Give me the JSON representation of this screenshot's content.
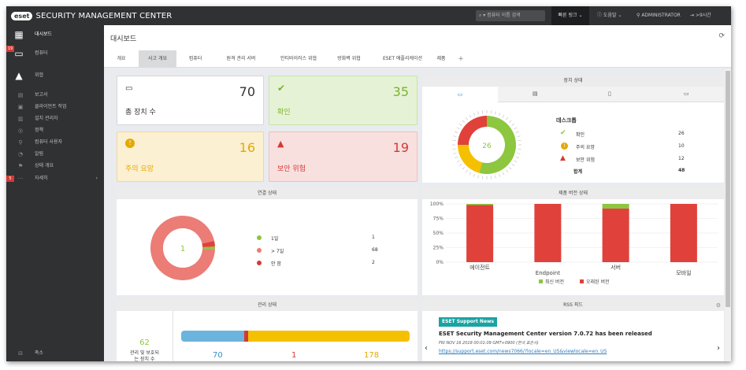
{
  "app": {
    "brand_badge": "eset",
    "brand_title": "SECURITY MANAGEMENT CENTER",
    "search_placeholder": "컴퓨터 이름 검색",
    "quick_links": "빠른 링크",
    "help": "도움말",
    "user": "ADMINISTRATOR",
    "logout": ">9시간"
  },
  "sidebar": {
    "items": [
      {
        "label": "대시보드",
        "icon": "dashboard-icon"
      },
      {
        "label": "컴퓨터",
        "icon": "computer-icon",
        "badge": "19"
      },
      {
        "label": "위협",
        "icon": "threat-icon"
      },
      {
        "label": "보고서",
        "icon": "report-icon"
      },
      {
        "label": "클라이언트 작업",
        "icon": "task-icon"
      },
      {
        "label": "설치 관리자",
        "icon": "installer-icon"
      },
      {
        "label": "정책",
        "icon": "policy-icon"
      },
      {
        "label": "컴퓨터 사용자",
        "icon": "user-icon"
      },
      {
        "label": "알림",
        "icon": "bell-icon"
      },
      {
        "label": "상태 개요",
        "icon": "status-icon"
      },
      {
        "label": "자세히",
        "icon": "more-icon",
        "badge": "5"
      }
    ],
    "collapse": "축소"
  },
  "page": {
    "title": "대시보드",
    "tabs": [
      "개요",
      "사고 개요",
      "컴퓨터",
      "원격 관리 서버",
      "안티바이러스 위협",
      "방화벽 위협",
      "ESET 애플리케이션",
      "제품"
    ]
  },
  "summary": {
    "total": {
      "value": "70",
      "label": "총 장치 수"
    },
    "ok": {
      "value": "35",
      "label": "확인"
    },
    "warning": {
      "value": "16",
      "label": "주의 요망"
    },
    "risk": {
      "value": "19",
      "label": "보안 위험"
    }
  },
  "device_status": {
    "title": "장치 상태",
    "center_value": "26",
    "section": "데스크톱",
    "rows": [
      {
        "label": "확인",
        "value": "26"
      },
      {
        "label": "주의 요망",
        "value": "10"
      },
      {
        "label": "보안 위험",
        "value": "12"
      }
    ],
    "total_label": "합계",
    "total_value": "48"
  },
  "connection_status": {
    "title": "연결 상태",
    "center_value": "1",
    "legend": [
      {
        "label": "1일",
        "value": "1"
      },
      {
        "label": "> 7일",
        "value": "68"
      },
      {
        "label": "안 함",
        "value": "2"
      }
    ]
  },
  "product_version": {
    "title": "제품 버전 상태",
    "legend": [
      "최신 버전",
      "오래된 버전"
    ]
  },
  "management_status": {
    "title": "관리 상태",
    "count": "62",
    "label1": "관리 및 보호되",
    "label2": "는 장치 수",
    "values": [
      "70",
      "1",
      "178"
    ]
  },
  "rss": {
    "title": "RSS 피드",
    "badge": "ESET Support News",
    "headline": "ESET Security Management Center version 7.0.72 has been released",
    "date": "FRI NOV 16 2018 00:01:09 GMT+0900 (한국 표준시)",
    "link": "https://support.eset.com/news7066/?locale=en_US&viewlocale=en_US"
  },
  "colors": {
    "ok": "#8dc63f",
    "warning": "#f5c000",
    "risk": "#e0413a",
    "salmon": "#ec7c76",
    "blue": "#6bb4dd"
  },
  "chart_data": [
    {
      "type": "pie",
      "title": "장치 상태",
      "categories": [
        "확인",
        "주의 요망",
        "보안 위험"
      ],
      "values": [
        26,
        10,
        12
      ]
    },
    {
      "type": "pie",
      "title": "연결 상태",
      "categories": [
        "1일",
        "> 7일",
        "안 함"
      ],
      "values": [
        1,
        68,
        2
      ]
    },
    {
      "type": "bar",
      "title": "제품 버전 상태",
      "categories": [
        "에이전트",
        "Endpoint",
        "서버",
        "모바일"
      ],
      "series": [
        {
          "name": "최신 버전",
          "values": [
            2,
            0,
            8,
            0
          ]
        },
        {
          "name": "오래된 버전",
          "values": [
            98,
            100,
            92,
            100
          ]
        }
      ],
      "yticks": [
        "100%",
        "75%",
        "50%",
        "25%",
        "0%"
      ],
      "ylim": [
        0,
        100
      ]
    }
  ]
}
